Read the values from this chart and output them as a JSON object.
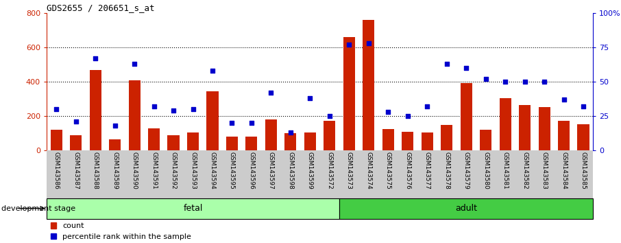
{
  "title": "GDS2655 / 206651_s_at",
  "categories": [
    "GSM143586",
    "GSM143587",
    "GSM143588",
    "GSM143589",
    "GSM143590",
    "GSM143591",
    "GSM143592",
    "GSM143593",
    "GSM143594",
    "GSM143595",
    "GSM143596",
    "GSM143597",
    "GSM143598",
    "GSM143599",
    "GSM143572",
    "GSM143573",
    "GSM143574",
    "GSM143575",
    "GSM143576",
    "GSM143577",
    "GSM143578",
    "GSM143579",
    "GSM143580",
    "GSM143581",
    "GSM143582",
    "GSM143583",
    "GSM143584",
    "GSM143585"
  ],
  "count_values": [
    120,
    90,
    470,
    65,
    410,
    130,
    90,
    105,
    345,
    80,
    80,
    180,
    100,
    105,
    175,
    660,
    760,
    125,
    110,
    105,
    150,
    395,
    120,
    305,
    265,
    255,
    175,
    155
  ],
  "percentile_values": [
    30,
    21,
    67,
    18,
    63,
    32,
    29,
    30,
    58,
    20,
    20,
    42,
    13,
    38,
    25,
    77,
    78,
    28,
    25,
    32,
    63,
    60,
    52,
    50,
    50,
    50,
    37,
    32
  ],
  "fetal_count": 15,
  "adult_count": 13,
  "bar_color": "#cc2200",
  "scatter_color": "#0000cc",
  "fetal_color": "#aaffaa",
  "adult_color": "#44cc44",
  "bg_color": "#ffffff",
  "xlabels_bg_color": "#cccccc",
  "ylim_left": [
    0,
    800
  ],
  "ylim_right": [
    0,
    100
  ],
  "yticks_left": [
    0,
    200,
    400,
    600,
    800
  ],
  "yticks_right": [
    0,
    25,
    50,
    75,
    100
  ],
  "ytick_right_labels": [
    "0",
    "25",
    "50",
    "75",
    "100%"
  ],
  "ylabel_left_color": "#cc2200",
  "ylabel_right_color": "#0000cc",
  "grid_lines": [
    200,
    400,
    600
  ],
  "legend_count_label": "count",
  "legend_pct_label": "percentile rank within the sample",
  "dev_stage_label": "development stage",
  "fetal_label": "fetal",
  "adult_label": "adult"
}
